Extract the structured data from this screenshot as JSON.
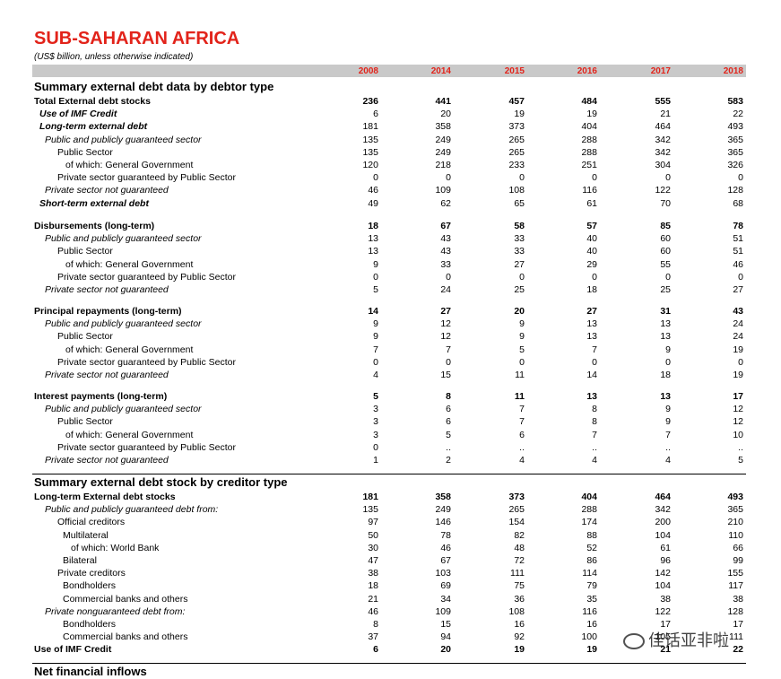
{
  "title": "SUB-SAHARAN AFRICA",
  "subtitle": "(US$ billion, unless otherwise indicated)",
  "years": [
    "2008",
    "2014",
    "2015",
    "2016",
    "2017",
    "2018"
  ],
  "sections": [
    {
      "heading": "Summary external debt data by debtor type",
      "rows": [
        {
          "label": "Total External debt stocks",
          "style": "b",
          "indent": 0,
          "values": [
            "236",
            "441",
            "457",
            "484",
            "555",
            "583"
          ]
        },
        {
          "label": "Use of IMF Credit",
          "style": "bi",
          "indent": 1,
          "values": [
            "6",
            "20",
            "19",
            "19",
            "21",
            "22"
          ]
        },
        {
          "label": "Long-term external debt",
          "style": "bi",
          "indent": 1,
          "values": [
            "181",
            "358",
            "373",
            "404",
            "464",
            "493"
          ]
        },
        {
          "label": "Public and publicly guaranteed sector",
          "style": "i",
          "indent": 2,
          "values": [
            "135",
            "249",
            "265",
            "288",
            "342",
            "365"
          ]
        },
        {
          "label": "Public Sector",
          "style": "n",
          "indent": 3,
          "values": [
            "135",
            "249",
            "265",
            "288",
            "342",
            "365"
          ]
        },
        {
          "label": "of which: General Government",
          "style": "n",
          "indent": 4,
          "values": [
            "120",
            "218",
            "233",
            "251",
            "304",
            "326"
          ]
        },
        {
          "label": "Private sector guaranteed by Public Sector",
          "style": "n",
          "indent": 3,
          "values": [
            "0",
            "0",
            "0",
            "0",
            "0",
            "0"
          ]
        },
        {
          "label": "Private sector not guaranteed",
          "style": "i",
          "indent": 2,
          "values": [
            "46",
            "109",
            "108",
            "116",
            "122",
            "128"
          ]
        },
        {
          "label": "Short-term external debt",
          "style": "bi",
          "indent": 1,
          "values": [
            "49",
            "62",
            "65",
            "61",
            "70",
            "68"
          ]
        }
      ]
    },
    {
      "heading": "",
      "rows": [
        {
          "label": "Disbursements (long-term)",
          "style": "b",
          "indent": 0,
          "values": [
            "18",
            "67",
            "58",
            "57",
            "85",
            "78"
          ]
        },
        {
          "label": "Public and publicly guaranteed sector",
          "style": "i",
          "indent": 2,
          "values": [
            "13",
            "43",
            "33",
            "40",
            "60",
            "51"
          ]
        },
        {
          "label": "Public Sector",
          "style": "n",
          "indent": 3,
          "values": [
            "13",
            "43",
            "33",
            "40",
            "60",
            "51"
          ]
        },
        {
          "label": "of which: General Government",
          "style": "n",
          "indent": 4,
          "values": [
            "9",
            "33",
            "27",
            "29",
            "55",
            "46"
          ]
        },
        {
          "label": "Private sector guaranteed by Public Sector",
          "style": "n",
          "indent": 3,
          "values": [
            "0",
            "0",
            "0",
            "0",
            "0",
            "0"
          ]
        },
        {
          "label": "Private sector not guaranteed",
          "style": "i",
          "indent": 2,
          "values": [
            "5",
            "24",
            "25",
            "18",
            "25",
            "27"
          ]
        }
      ]
    },
    {
      "heading": "",
      "rows": [
        {
          "label": "Principal repayments (long-term)",
          "style": "b",
          "indent": 0,
          "values": [
            "14",
            "27",
            "20",
            "27",
            "31",
            "43"
          ]
        },
        {
          "label": "Public and publicly guaranteed sector",
          "style": "i",
          "indent": 2,
          "values": [
            "9",
            "12",
            "9",
            "13",
            "13",
            "24"
          ]
        },
        {
          "label": "Public Sector",
          "style": "n",
          "indent": 3,
          "values": [
            "9",
            "12",
            "9",
            "13",
            "13",
            "24"
          ]
        },
        {
          "label": "of which: General Government",
          "style": "n",
          "indent": 4,
          "values": [
            "7",
            "7",
            "5",
            "7",
            "9",
            "19"
          ]
        },
        {
          "label": "Private sector guaranteed by Public Sector",
          "style": "n",
          "indent": 3,
          "values": [
            "0",
            "0",
            "0",
            "0",
            "0",
            "0"
          ]
        },
        {
          "label": "Private sector not guaranteed",
          "style": "i",
          "indent": 2,
          "values": [
            "4",
            "15",
            "11",
            "14",
            "18",
            "19"
          ]
        }
      ]
    },
    {
      "heading": "",
      "rows": [
        {
          "label": "Interest payments (long-term)",
          "style": "b",
          "indent": 0,
          "values": [
            "5",
            "8",
            "11",
            "13",
            "13",
            "17"
          ]
        },
        {
          "label": "Public and publicly guaranteed sector",
          "style": "i",
          "indent": 2,
          "values": [
            "3",
            "6",
            "7",
            "8",
            "9",
            "12"
          ]
        },
        {
          "label": "Public Sector",
          "style": "n",
          "indent": 3,
          "values": [
            "3",
            "6",
            "7",
            "8",
            "9",
            "12"
          ]
        },
        {
          "label": "of which: General Government",
          "style": "n",
          "indent": 4,
          "values": [
            "3",
            "5",
            "6",
            "7",
            "7",
            "10"
          ]
        },
        {
          "label": "Private sector guaranteed by Public Sector",
          "style": "n",
          "indent": 3,
          "values": [
            "0",
            "..",
            "..",
            "..",
            "..",
            ".."
          ]
        },
        {
          "label": "Private sector not guaranteed",
          "style": "i",
          "indent": 2,
          "values": [
            "1",
            "2",
            "4",
            "4",
            "4",
            "5"
          ]
        }
      ]
    },
    {
      "heading": "Summary external debt stock by creditor type",
      "rows": [
        {
          "label": "Long-term External debt stocks",
          "style": "b",
          "indent": 0,
          "values": [
            "181",
            "358",
            "373",
            "404",
            "464",
            "493"
          ]
        },
        {
          "label": "Public and publicly guaranteed debt from:",
          "style": "i",
          "indent": 2,
          "values": [
            "135",
            "249",
            "265",
            "288",
            "342",
            "365"
          ]
        },
        {
          "label": "Official creditors",
          "style": "n",
          "indent": 3,
          "values": [
            "97",
            "146",
            "154",
            "174",
            "200",
            "210"
          ]
        },
        {
          "label": "Multilateral",
          "style": "n",
          "indent": 5,
          "values": [
            "50",
            "78",
            "82",
            "88",
            "104",
            "110"
          ]
        },
        {
          "label": "of which: World Bank",
          "style": "n",
          "indent": 6,
          "values": [
            "30",
            "46",
            "48",
            "52",
            "61",
            "66"
          ]
        },
        {
          "label": "Bilateral",
          "style": "n",
          "indent": 5,
          "values": [
            "47",
            "67",
            "72",
            "86",
            "96",
            "99"
          ]
        },
        {
          "label": "Private creditors",
          "style": "n",
          "indent": 3,
          "values": [
            "38",
            "103",
            "111",
            "114",
            "142",
            "155"
          ]
        },
        {
          "label": "Bondholders",
          "style": "n",
          "indent": 5,
          "values": [
            "18",
            "69",
            "75",
            "79",
            "104",
            "117"
          ]
        },
        {
          "label": "Commercial banks and others",
          "style": "n",
          "indent": 5,
          "values": [
            "21",
            "34",
            "36",
            "35",
            "38",
            "38"
          ]
        },
        {
          "label": "Private nonguaranteed debt from:",
          "style": "i",
          "indent": 2,
          "values": [
            "46",
            "109",
            "108",
            "116",
            "122",
            "128"
          ]
        },
        {
          "label": "Bondholders",
          "style": "n",
          "indent": 5,
          "values": [
            "8",
            "15",
            "16",
            "16",
            "17",
            "17"
          ]
        },
        {
          "label": "Commercial banks and others",
          "style": "n",
          "indent": 5,
          "values": [
            "37",
            "94",
            "92",
            "100",
            "105",
            "111"
          ]
        },
        {
          "label": "Use of IMF Credit",
          "style": "b",
          "indent": 0,
          "values": [
            "6",
            "20",
            "19",
            "19",
            "21",
            "22"
          ]
        }
      ]
    },
    {
      "heading": "Net financial inflows",
      "rows": []
    }
  ],
  "watermark": "佳话亚非啦"
}
